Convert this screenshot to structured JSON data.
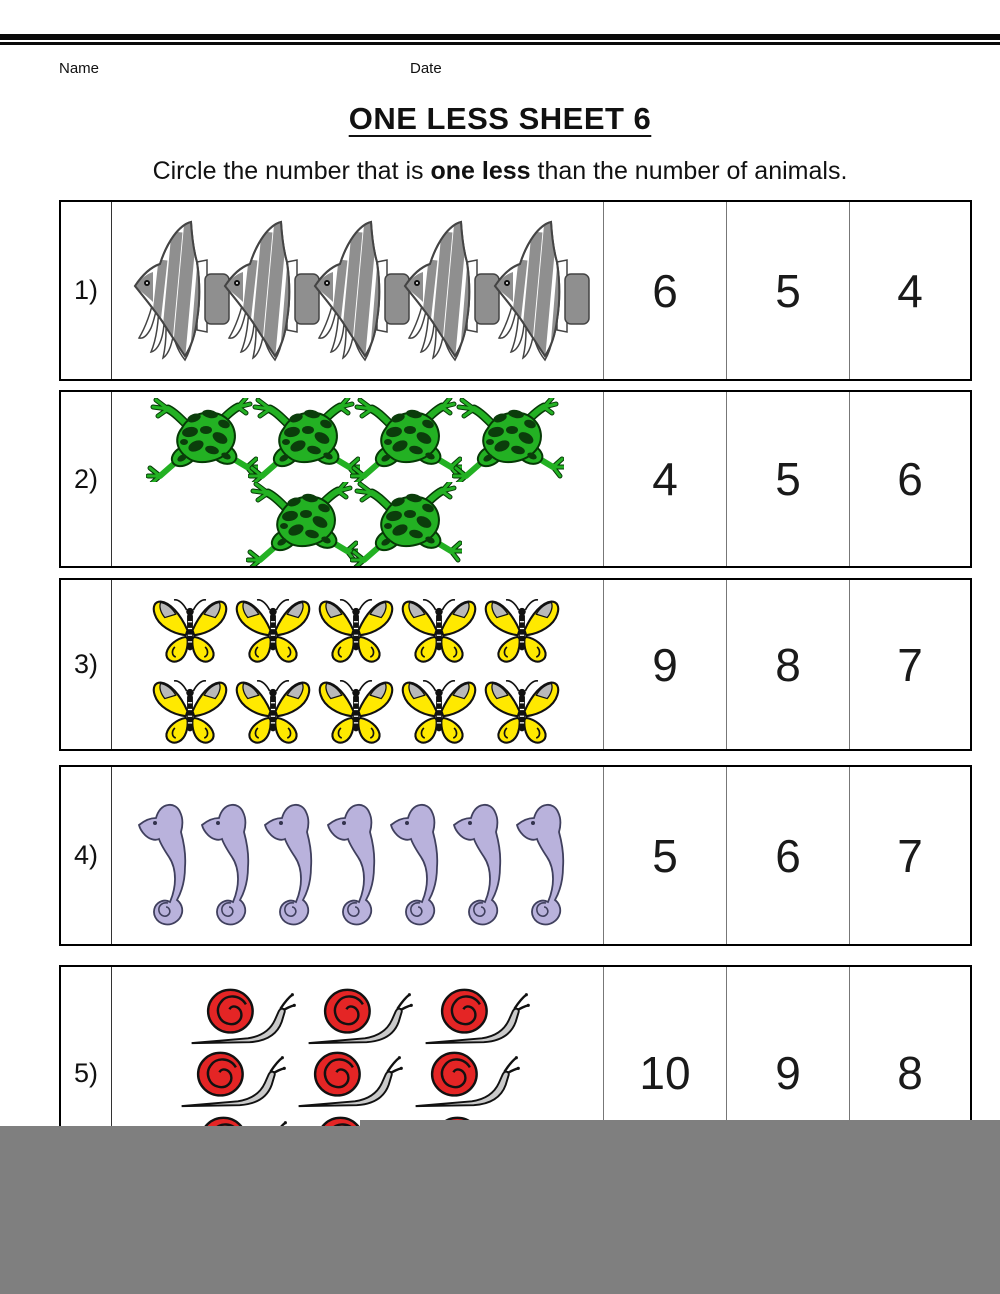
{
  "header": {
    "name_label": "Name",
    "date_label": "Date"
  },
  "title": "ONE LESS SHEET 6",
  "instruction": {
    "prefix": "Circle the number that is ",
    "bold": "one less",
    "suffix": " than the number of animals."
  },
  "rows": [
    {
      "label": "1)",
      "animal": "angelfish",
      "count": 5,
      "lines": [
        5
      ],
      "options": [
        "6",
        "5",
        "4"
      ]
    },
    {
      "label": "2)",
      "animal": "frog",
      "count": 6,
      "lines": [
        4,
        2
      ],
      "options": [
        "4",
        "5",
        "6"
      ]
    },
    {
      "label": "3)",
      "animal": "butterfly",
      "count": 10,
      "lines": [
        5,
        5
      ],
      "options": [
        "9",
        "8",
        "7"
      ]
    },
    {
      "label": "4)",
      "animal": "seahorse",
      "count": 7,
      "lines": [
        7
      ],
      "options": [
        "5",
        "6",
        "7"
      ]
    },
    {
      "label": "5)",
      "animal": "snail",
      "count": 9,
      "lines": [
        3,
        3,
        3
      ],
      "options": [
        "10",
        "9",
        "8"
      ]
    }
  ],
  "colors": {
    "top_bar": "#0a0a0a",
    "fish_stripe": "#8f8f8f",
    "frog_green": "#23b123",
    "frog_spot": "#0b3d0b",
    "butterfly_yellow": "#ffe900",
    "butterfly_gray_patch": "#b9b9b9",
    "seahorse_lavender": "#b9b2dc",
    "snail_shell_red": "#e42525",
    "snail_body_gray": "#cacaca",
    "bottom_overlay_gray": "#7f7f7f"
  }
}
